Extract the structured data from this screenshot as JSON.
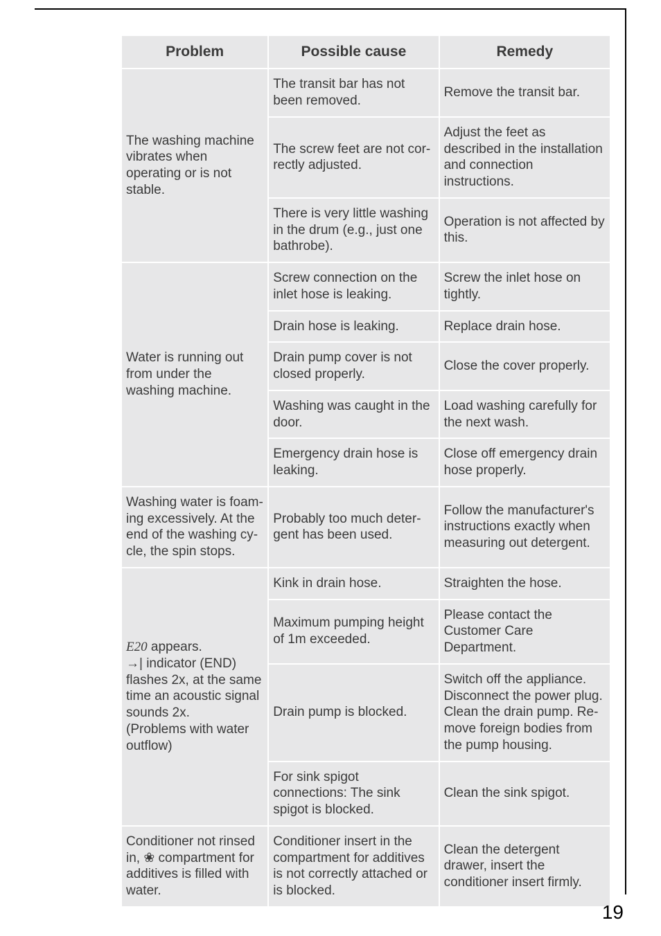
{
  "page_number": "19",
  "headers": {
    "c1": "Problem",
    "c2": "Possible cause",
    "c3": "Remedy"
  },
  "groups": [
    {
      "problem": "The washing machine vibrates when operating or is not stable.",
      "rows": [
        {
          "cause": "The transit bar has not been removed.",
          "remedy": "Remove the transit bar."
        },
        {
          "cause": "The screw feet are not cor­rectly adjusted.",
          "remedy": "Adjust the feet as described in the installation and con­nection instructions."
        },
        {
          "cause": "There is very little washing in the drum (e.g., just one bathrobe).",
          "remedy": "Operation is not affected by this."
        }
      ]
    },
    {
      "problem": "Water is running out from under the washing machine.",
      "rows": [
        {
          "cause": "Screw connection on the in­let hose is leaking.",
          "remedy": "Screw the inlet hose on tightly."
        },
        {
          "cause": "Drain hose is leaking.",
          "remedy": "Replace drain hose."
        },
        {
          "cause": "Drain pump cover is not closed properly.",
          "remedy": "Close the cover properly."
        },
        {
          "cause": "Washing was caught in the door.",
          "remedy": "Load washing carefully for the next wash."
        },
        {
          "cause": "Emergency drain hose is leaking.",
          "remedy": "Close off emergency drain hose properly."
        }
      ]
    },
    {
      "problem": "Washing water is foam­ing excessively. At the end of the washing cy­cle, the spin stops.",
      "rows": [
        {
          "cause": "Probably too much deter­gent has been used.",
          "remedy": "Follow the manufacturer's instructions exactly when measuring out detergent."
        }
      ]
    },
    {
      "problem_prefix_italic": "E20",
      "problem_rest": " appears.\n→| indicator (END) flashes 2x, at the same time an acoustic signal sounds 2x.\n(Problems with water outflow)",
      "rows": [
        {
          "cause": "Kink in drain hose.",
          "remedy": "Straighten the hose."
        },
        {
          "cause": "Maximum pumping height of 1m exceeded.",
          "remedy": "Please contact the Customer Care Department."
        },
        {
          "cause": "Drain pump is blocked.",
          "remedy": "Switch off the appliance. Disconnect the power plug. Clean the drain pump. Re­move foreign bodies from the pump housing."
        },
        {
          "cause": "For sink spigot connections: The sink spigot is blocked.",
          "remedy": "Clean the sink spigot."
        }
      ]
    },
    {
      "problem_html": "Conditioner not rinsed in, <span class='sym'>❀</span> compartment for additives is filled with water.",
      "rows": [
        {
          "cause": "Conditioner insert in the compartment for additives is not correctly attached or is blocked.",
          "remedy": "Clean the detergent drawer, insert the conditioner insert firmly."
        }
      ]
    }
  ]
}
